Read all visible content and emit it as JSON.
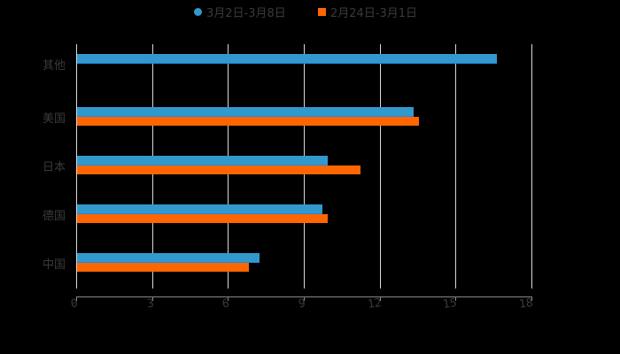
{
  "chart_data": {
    "type": "bar",
    "orientation": "horizontal",
    "title": "",
    "xlabel": "",
    "ylabel": "",
    "xlim": [
      0,
      18
    ],
    "x_ticks": [
      "0",
      "3",
      "6",
      "9",
      "12",
      "15",
      "18"
    ],
    "grid": true,
    "legend_position": "top",
    "categories": [
      "其他",
      "美国",
      "日本",
      "德国",
      "中国"
    ],
    "series": [
      {
        "name": "3月2日-3月8日",
        "color": "#3399cc",
        "values": [
          16.6,
          13.3,
          9.9,
          9.7,
          7.2
        ]
      },
      {
        "name": "2月24日-3月1日",
        "color": "#ff6600",
        "values": [
          null,
          13.5,
          11.2,
          9.9,
          6.8
        ]
      }
    ]
  },
  "legend": {
    "series_1": "3月2日-3月8日",
    "series_2": "2月24日-3月1日"
  },
  "axis": {
    "ticks": [
      "0",
      "3",
      "6",
      "9",
      "12",
      "15",
      "18"
    ]
  },
  "categories": [
    "其他",
    "美国",
    "日本",
    "德国",
    "中国"
  ]
}
